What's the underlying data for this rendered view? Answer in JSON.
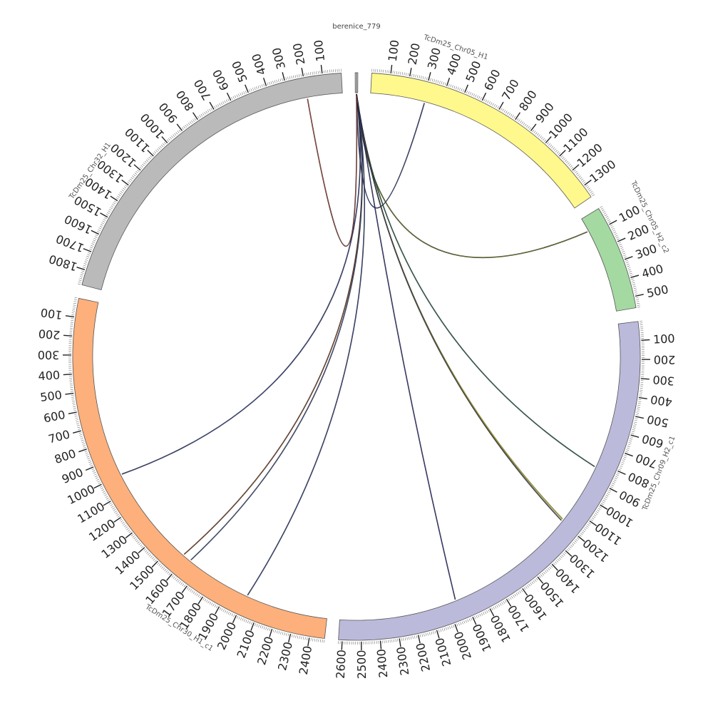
{
  "title": "berenice_779",
  "center_segment": {
    "name": "berenice_779",
    "length": 14
  },
  "segments": [
    {
      "name": "TcDm25_Chr05_H1",
      "length": 1370,
      "color": "#fff88c",
      "tick_step": 100,
      "reverse": false
    },
    {
      "name": "TcDm25_Chr05_H2_c2",
      "length": 560,
      "color": "#a5d9a2",
      "tick_step": 100,
      "reverse": false
    },
    {
      "name": "TcDm25_Chr09_H2_c1",
      "length": 2620,
      "color": "#bcbadb",
      "tick_step": 100,
      "reverse": false
    },
    {
      "name": "TcDm25_Chr30_H1_c1",
      "length": 2480,
      "color": "#fdb07b",
      "tick_step": 100,
      "reverse": true
    },
    {
      "name": "TcDm25_Chr32_H1",
      "length": 1880,
      "color": "#bababa",
      "tick_step": 100,
      "reverse": true
    }
  ],
  "links": [
    {
      "target": "TcDm25_Chr05_H1",
      "pos": 310,
      "color": "#3b4a8a"
    },
    {
      "target": "TcDm25_Chr05_H2_c2",
      "pos": 80,
      "color": "#6b7b2a"
    },
    {
      "target": "TcDm25_Chr09_H2_c1",
      "pos": 830,
      "color": "#2f6b55"
    },
    {
      "target": "TcDm25_Chr09_H2_c1",
      "pos": 1180,
      "color": "#c8c820"
    },
    {
      "target": "TcDm25_Chr09_H2_c1",
      "pos": 1190,
      "color": "#555555"
    },
    {
      "target": "TcDm25_Chr09_H2_c1",
      "pos": 1950,
      "color": "#3b3b8a"
    },
    {
      "target": "TcDm25_Chr30_H1_c1",
      "pos": 1000,
      "color": "#3b4a8a"
    },
    {
      "target": "TcDm25_Chr30_H1_c1",
      "pos": 1580,
      "color": "#8a4a2a"
    },
    {
      "target": "TcDm25_Chr30_H1_c1",
      "pos": 1630,
      "color": "#4a5a8a"
    },
    {
      "target": "TcDm25_Chr30_H1_c1",
      "pos": 2010,
      "color": "#3b4a8a"
    },
    {
      "target": "TcDm25_Chr32_H1",
      "pos": 200,
      "color": "#b04a3a"
    }
  ],
  "colors": {
    "tick": "#222222",
    "minor_tick": "#777777",
    "link_outline": "#111111"
  }
}
